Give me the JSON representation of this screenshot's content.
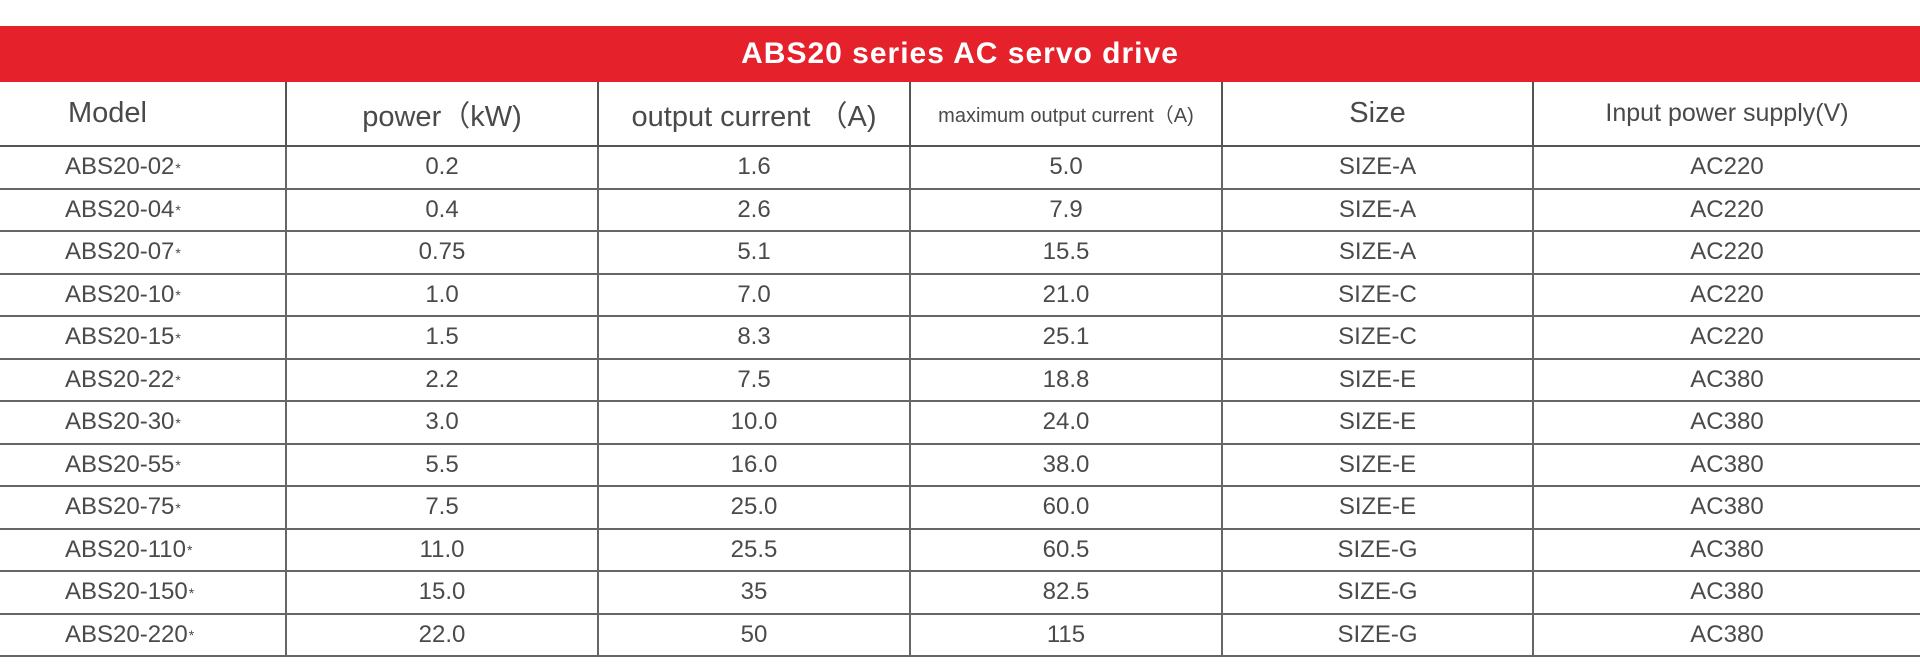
{
  "title": "ABS20 series AC servo drive",
  "colors": {
    "banner": "#e5212c",
    "text": "#4a4a4a",
    "grid": "#555555"
  },
  "headers": {
    "model": "Model",
    "power": "power（kW)",
    "output_current": "output current （A)",
    "max_output_current": "maximum output current（A)",
    "size": "Size",
    "input_power_supply": "Input power supply(V)"
  },
  "rows": [
    {
      "model": "ABS20-02",
      "mark": "*",
      "power": "0.2",
      "current": "1.6",
      "max_current": "5.0",
      "size": "SIZE-A",
      "supply": "AC220"
    },
    {
      "model": "ABS20-04",
      "mark": "*",
      "power": "0.4",
      "current": "2.6",
      "max_current": "7.9",
      "size": "SIZE-A",
      "supply": "AC220"
    },
    {
      "model": "ABS20-07",
      "mark": "*",
      "power": "0.75",
      "current": "5.1",
      "max_current": "15.5",
      "size": "SIZE-A",
      "supply": "AC220"
    },
    {
      "model": "ABS20-10",
      "mark": "*",
      "power": "1.0",
      "current": "7.0",
      "max_current": "21.0",
      "size": "SIZE-C",
      "supply": "AC220"
    },
    {
      "model": "ABS20-15",
      "mark": "*",
      "power": "1.5",
      "current": "8.3",
      "max_current": "25.1",
      "size": "SIZE-C",
      "supply": "AC220"
    },
    {
      "model": "ABS20-22",
      "mark": "*",
      "power": "2.2",
      "current": "7.5",
      "max_current": "18.8",
      "size": "SIZE-E",
      "supply": "AC380"
    },
    {
      "model": "ABS20-30",
      "mark": "*",
      "power": "3.0",
      "current": "10.0",
      "max_current": "24.0",
      "size": "SIZE-E",
      "supply": "AC380"
    },
    {
      "model": "ABS20-55",
      "mark": "*",
      "power": "5.5",
      "current": "16.0",
      "max_current": "38.0",
      "size": "SIZE-E",
      "supply": "AC380"
    },
    {
      "model": "ABS20-75",
      "mark": "*",
      "power": "7.5",
      "current": "25.0",
      "max_current": "60.0",
      "size": "SIZE-E",
      "supply": "AC380"
    },
    {
      "model": "ABS20-110",
      "mark": "*",
      "power": "11.0",
      "current": "25.5",
      "max_current": "60.5",
      "size": "SIZE-G",
      "supply": "AC380"
    },
    {
      "model": "ABS20-150",
      "mark": "*",
      "power": "15.0",
      "current": "35",
      "max_current": "82.5",
      "size": "SIZE-G",
      "supply": "AC380"
    },
    {
      "model": "ABS20-220",
      "mark": "*",
      "power": "22.0",
      "current": "50",
      "max_current": "115",
      "size": "SIZE-G",
      "supply": "AC380"
    }
  ]
}
